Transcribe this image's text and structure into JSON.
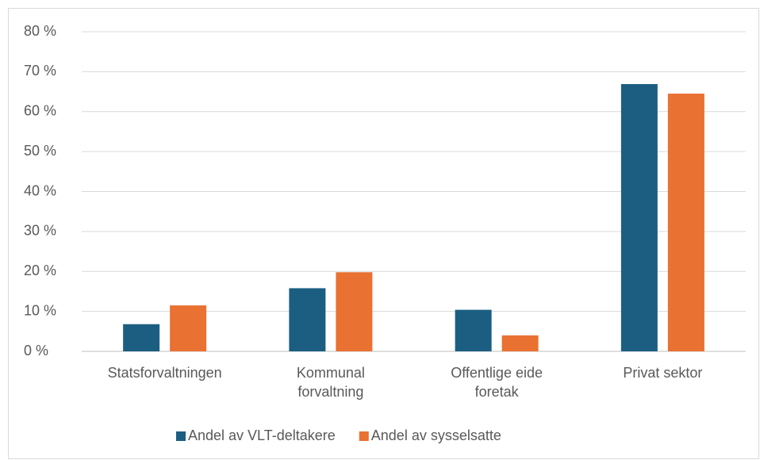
{
  "chart_data": {
    "type": "bar",
    "categories": [
      "Statsforvaltningen",
      "Kommunal forvaltning",
      "Offentlige eide foretak",
      "Privat sektor"
    ],
    "series": [
      {
        "name": "Andel av VLT-deltakere",
        "color": "#1b5e82",
        "values": [
          6.8,
          15.8,
          10.4,
          66.9
        ]
      },
      {
        "name": "Andel av sysselsatte",
        "color": "#e97132",
        "values": [
          11.5,
          19.8,
          4.0,
          64.5
        ]
      }
    ],
    "ylim": [
      0,
      80
    ],
    "yticks": [
      {
        "value": 0,
        "label": "0 %"
      },
      {
        "value": 10,
        "label": "10 %"
      },
      {
        "value": 20,
        "label": "20 %"
      },
      {
        "value": 30,
        "label": "30 %"
      },
      {
        "value": 40,
        "label": "40 %"
      },
      {
        "value": 50,
        "label": "50 %"
      },
      {
        "value": 60,
        "label": "60 %"
      },
      {
        "value": 70,
        "label": "70 %"
      },
      {
        "value": 80,
        "label": "80 %"
      }
    ],
    "grid": true,
    "legend": "bottom"
  }
}
